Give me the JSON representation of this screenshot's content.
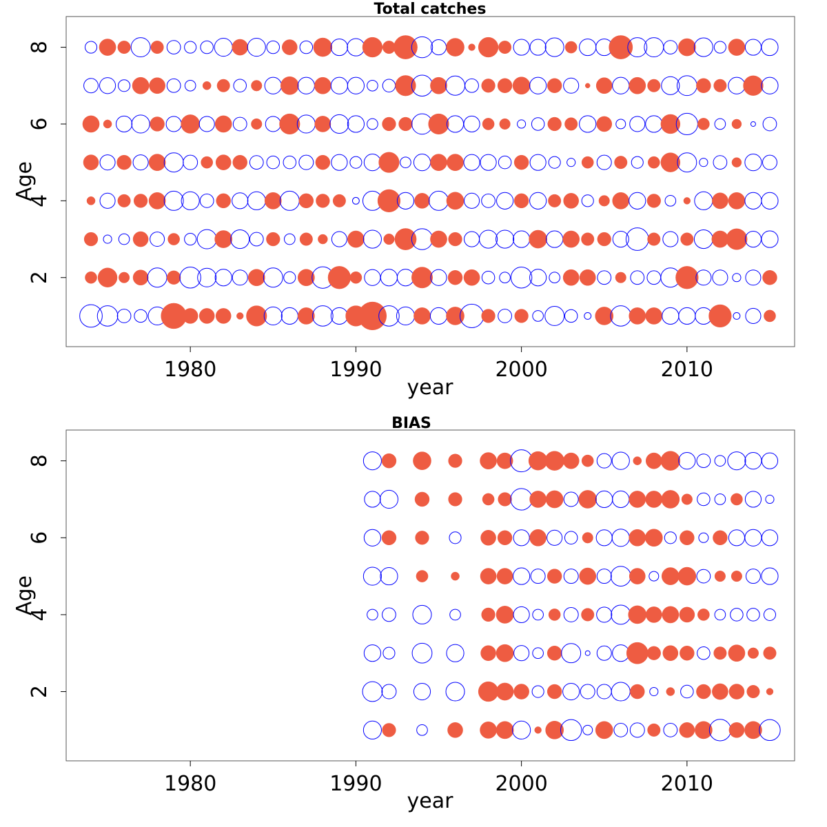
{
  "chart_data": [
    {
      "type": "scatter",
      "subtype": "residual-bubble",
      "title": "Total catches",
      "xlabel": "year",
      "ylabel": "Age",
      "xlim": [
        1972.5,
        2016.5
      ],
      "ylim": [
        0.2,
        8.8
      ],
      "xticks": [
        "1980",
        "1990",
        "2000",
        "2010"
      ],
      "yticks": [
        "2",
        "4",
        "6",
        "8"
      ],
      "colors": {
        "positive": "#ee5c42",
        "negative": "#0000ff"
      },
      "legend": "none",
      "grid": false,
      "years": [
        1974,
        1975,
        1976,
        1977,
        1978,
        1979,
        1980,
        1981,
        1982,
        1983,
        1984,
        1985,
        1986,
        1987,
        1988,
        1989,
        1990,
        1991,
        1992,
        1993,
        1994,
        1995,
        1996,
        1997,
        1998,
        1999,
        2000,
        2001,
        2002,
        2003,
        2004,
        2005,
        2006,
        2007,
        2008,
        2009,
        2010,
        2011,
        2012,
        2013,
        2014,
        2015
      ],
      "ages": [
        1,
        2,
        3,
        4,
        5,
        6,
        7,
        8
      ],
      "residuals_by_age": {
        "1": [
          -1.1,
          -0.9,
          -0.4,
          -0.35,
          -0.7,
          1.4,
          0.5,
          0.5,
          0.5,
          0.1,
          0.9,
          -0.7,
          -0.6,
          0.6,
          -0.9,
          -0.6,
          0.9,
          1.7,
          -0.9,
          -0.7,
          0.6,
          -0.6,
          0.7,
          -1.2,
          0.4,
          -0.4,
          0.4,
          -0.25,
          -0.8,
          -0.35,
          -0.1,
          0.7,
          -0.9,
          0.6,
          0.6,
          -0.6,
          -0.6,
          -0.6,
          1.1,
          -0.1,
          -0.5,
          0.3
        ],
        "2": [
          0.3,
          0.8,
          0.25,
          0.5,
          -0.8,
          0.4,
          -0.95,
          -0.75,
          -0.6,
          -0.5,
          0.6,
          -0.8,
          -0.3,
          0.6,
          -1.0,
          1.1,
          0.3,
          -0.55,
          -0.6,
          -0.6,
          0.95,
          -0.55,
          0.45,
          0.55,
          -0.35,
          -0.25,
          -0.95,
          -0.6,
          -0.25,
          0.55,
          0.55,
          -0.4,
          0.25,
          -0.4,
          -0.4,
          -0.8,
          1.1,
          -0.5,
          -0.5,
          -0.15,
          -0.5,
          0.45
        ],
        "3": [
          0.4,
          -0.15,
          -0.25,
          0.5,
          -0.45,
          0.3,
          -0.3,
          -0.8,
          0.65,
          -0.75,
          -0.4,
          0.4,
          -0.25,
          0.35,
          0.2,
          -0.5,
          0.6,
          -0.7,
          0.25,
          1.0,
          -0.95,
          0.6,
          0.4,
          -0.5,
          -0.7,
          -0.7,
          -0.6,
          0.7,
          -0.6,
          0.6,
          0.35,
          0.4,
          -0.55,
          -1.1,
          0.35,
          -0.5,
          0.35,
          -0.75,
          0.6,
          0.95,
          -0.55,
          -0.6
        ],
        "4": [
          0.15,
          -0.5,
          0.35,
          0.4,
          0.6,
          -0.8,
          -0.7,
          -0.4,
          0.45,
          -0.55,
          -0.7,
          0.6,
          -0.8,
          0.45,
          0.4,
          0.35,
          -0.1,
          -0.8,
          1.1,
          -0.6,
          0.5,
          -0.8,
          0.65,
          -0.5,
          -0.4,
          -0.6,
          0.45,
          -0.6,
          0.35,
          0.5,
          -0.3,
          0.25,
          0.6,
          -0.6,
          0.4,
          -0.25,
          0.1,
          -0.7,
          0.55,
          0.6,
          -0.6,
          -0.6
        ],
        "5": [
          0.5,
          -0.5,
          0.45,
          -0.5,
          0.6,
          -0.8,
          -0.45,
          0.3,
          0.5,
          0.45,
          -0.4,
          -0.35,
          -0.35,
          -0.45,
          0.45,
          -0.55,
          -0.3,
          -0.6,
          0.9,
          -0.25,
          -0.6,
          0.6,
          0.6,
          -0.55,
          -0.55,
          -0.35,
          0.45,
          -0.55,
          -0.3,
          -0.15,
          0.3,
          -0.45,
          0.35,
          -0.3,
          0.3,
          0.8,
          -0.8,
          -0.15,
          -0.4,
          0.2,
          -0.6,
          -0.45
        ],
        "6": [
          0.6,
          0.15,
          -0.55,
          -0.7,
          0.45,
          -0.5,
          0.75,
          -0.5,
          0.6,
          -0.4,
          0.25,
          -0.5,
          0.9,
          -0.7,
          0.55,
          -0.75,
          -0.6,
          -0.25,
          0.4,
          0.4,
          -0.9,
          0.9,
          -0.6,
          -0.55,
          0.3,
          0.25,
          -0.15,
          -0.35,
          0.4,
          0.35,
          -0.6,
          0.5,
          -0.2,
          -0.5,
          -0.6,
          0.8,
          -1.0,
          0.3,
          -0.25,
          0.2,
          -0.05,
          -0.4
        ],
        "7": [
          -0.45,
          -0.55,
          -0.3,
          0.6,
          0.55,
          -0.4,
          -0.25,
          0.15,
          0.35,
          -0.35,
          0.25,
          -0.6,
          0.7,
          -0.6,
          0.6,
          -0.6,
          -0.6,
          -0.25,
          -0.35,
          0.9,
          -0.95,
          0.6,
          -0.8,
          -0.4,
          0.4,
          0.45,
          0.65,
          -0.6,
          0.45,
          -0.5,
          0.05,
          0.55,
          -0.6,
          0.6,
          0.35,
          -0.7,
          -0.85,
          0.45,
          0.35,
          -0.6,
          0.85,
          -0.6
        ],
        "8": [
          -0.3,
          0.6,
          0.35,
          -0.8,
          0.35,
          -0.4,
          -0.3,
          -0.35,
          -0.7,
          0.55,
          -0.7,
          -0.35,
          0.5,
          -0.35,
          0.75,
          -0.6,
          -0.65,
          0.85,
          0.35,
          1.2,
          -0.95,
          -0.5,
          0.7,
          0.1,
          0.85,
          0.35,
          -0.55,
          -0.55,
          -0.75,
          0.3,
          -0.6,
          -0.6,
          1.2,
          -0.8,
          -0.8,
          -0.4,
          0.65,
          -0.75,
          -0.3,
          0.6,
          -0.55,
          -0.6
        ]
      }
    },
    {
      "type": "scatter",
      "subtype": "residual-bubble",
      "title": "BIAS",
      "xlabel": "year",
      "ylabel": "Age",
      "xlim": [
        1972.5,
        2016.5
      ],
      "ylim": [
        0.2,
        8.8
      ],
      "xticks": [
        "1980",
        "1990",
        "2000",
        "2010"
      ],
      "yticks": [
        "2",
        "4",
        "6",
        "8"
      ],
      "colors": {
        "positive": "#ee5c42",
        "negative": "#0000ff"
      },
      "legend": "none",
      "grid": false,
      "years": [
        1991,
        1992,
        1994,
        1996,
        1998,
        1999,
        2000,
        2001,
        2002,
        2003,
        2004,
        2005,
        2006,
        2007,
        2008,
        2009,
        2010,
        2011,
        2012,
        2013,
        2014,
        2015
      ],
      "ages": [
        1,
        2,
        3,
        4,
        5,
        6,
        7,
        8
      ],
      "residuals_by_age": {
        "1": [
          -0.7,
          0.4,
          -0.25,
          0.5,
          0.6,
          0.65,
          -0.7,
          0.1,
          0.7,
          -0.95,
          -0.2,
          0.65,
          -0.4,
          -0.45,
          0.35,
          -0.4,
          0.5,
          0.65,
          -1.0,
          0.5,
          0.65,
          -0.95
        ],
        "2": [
          -0.85,
          -0.45,
          -0.6,
          -0.75,
          0.85,
          0.65,
          0.5,
          -0.3,
          0.45,
          -0.6,
          -0.45,
          -0.45,
          -0.75,
          0.45,
          -0.15,
          0.15,
          -0.35,
          0.45,
          0.55,
          0.5,
          0.35,
          0.1
        ],
        "3": [
          -0.6,
          -0.3,
          -0.85,
          -0.65,
          0.5,
          0.65,
          -0.5,
          -0.25,
          0.45,
          -0.8,
          -0.05,
          -0.45,
          -0.6,
          1.0,
          0.4,
          0.5,
          0.45,
          -0.35,
          0.35,
          0.6,
          0.25,
          0.35
        ],
        "4": [
          -0.25,
          -0.4,
          -0.75,
          -0.25,
          0.4,
          0.65,
          -0.55,
          -0.25,
          0.3,
          -0.45,
          0.35,
          -0.5,
          -0.8,
          0.7,
          0.55,
          0.6,
          0.5,
          0.3,
          -0.25,
          -0.35,
          -0.35,
          -0.3
        ],
        "5": [
          -0.7,
          -0.65,
          0.3,
          0.15,
          0.55,
          0.55,
          -0.6,
          -0.45,
          0.45,
          -0.45,
          0.6,
          -0.45,
          -0.85,
          0.55,
          -0.2,
          0.65,
          0.7,
          -0.4,
          0.25,
          0.25,
          -0.45,
          -0.6
        ],
        "6": [
          -0.6,
          0.45,
          0.4,
          -0.3,
          0.5,
          0.45,
          -0.55,
          0.6,
          -0.5,
          -0.35,
          0.25,
          -0.55,
          -0.65,
          0.6,
          0.65,
          -0.3,
          0.45,
          -0.2,
          0.45,
          -0.55,
          -0.6,
          -0.55
        ],
        "7": [
          -0.55,
          -0.7,
          0.45,
          0.4,
          0.3,
          0.4,
          -1.0,
          0.6,
          0.65,
          -0.45,
          0.7,
          -0.6,
          -0.6,
          0.6,
          0.6,
          0.7,
          0.25,
          -0.35,
          -0.25,
          0.3,
          -0.55,
          -0.15
        ],
        "8": [
          -0.7,
          0.45,
          0.7,
          0.4,
          0.6,
          0.55,
          -1.05,
          0.75,
          0.8,
          0.55,
          0.3,
          -0.45,
          -0.65,
          0.15,
          0.55,
          0.8,
          -0.6,
          -0.4,
          -0.25,
          -0.7,
          -0.6,
          -0.55
        ]
      }
    }
  ]
}
